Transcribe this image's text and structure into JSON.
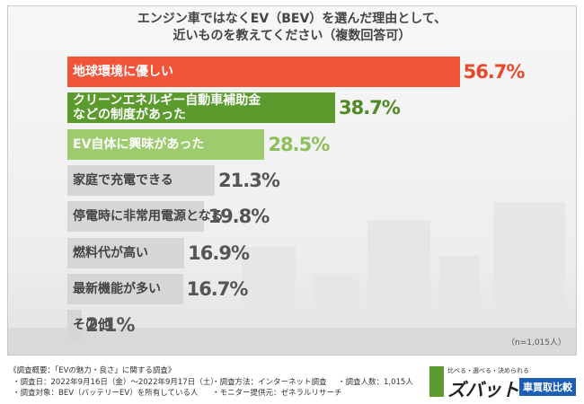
{
  "chart_data": {
    "type": "bar",
    "orientation": "horizontal",
    "title": "エンジン車ではなくEV（BEV）を選んだ理由として、\n近いものを教えてください（複数回答可）",
    "categories": [
      "地球環境に優しい",
      "クリーンエネルギー自動車補助金\nなどの制度があった",
      "EV自体に興味があった",
      "家庭で充電できる",
      "停電時に非常用電源となる",
      "燃料代が高い",
      "最新機能が多い",
      "その他"
    ],
    "values": [
      56.7,
      38.7,
      28.5,
      21.3,
      19.8,
      16.9,
      16.7,
      2.1
    ],
    "value_labels": [
      "56.7%",
      "38.7%",
      "28.5%",
      "21.3%",
      "19.8%",
      "16.9%",
      "16.7%",
      "2.1%"
    ],
    "colors": [
      "#f0553a",
      "#5b9a2c",
      "#9dcb6e",
      "#d6d6d6",
      "#d6d6d6",
      "#d6d6d6",
      "#d6d6d6",
      "#d6d6d6"
    ],
    "category_label_colors": [
      "#ffffff",
      "#ffffff",
      "#ffffff",
      "#444444",
      "#444444",
      "#444444",
      "#444444",
      "#444444"
    ],
    "value_label_colors": [
      "#e8492d",
      "#4f8a24",
      "#8dbf5c",
      "#555555",
      "#555555",
      "#555555",
      "#555555",
      "#555555"
    ],
    "sample_note": "（n=1,015人）"
  },
  "notes": [
    "《調査概要：「EVの魅力・良さ」に関する調査》",
    "・調査日：2022年9月16日（金）～2022年9月17日（土）",
    "・調査方法：インターネット調査",
    "・調査人数：1,015人",
    "・調査対象：BEV（バッテリーEV）を所有している人",
    "・モニター提供元：ゼネラルリサーチ"
  ],
  "logo": {
    "tagline": "比べる・選べる・決められる",
    "brand": "ズバット",
    "service": "車買取比較"
  }
}
